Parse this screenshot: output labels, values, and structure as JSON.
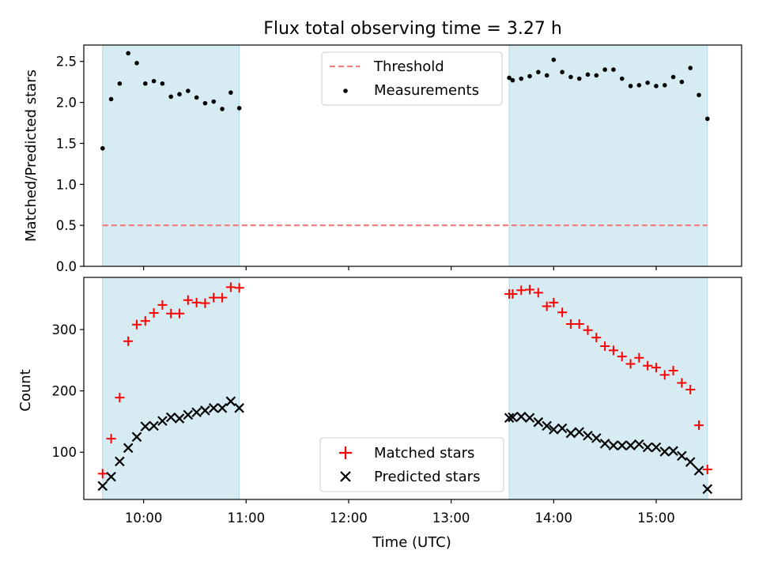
{
  "title": "Flux total observing time = 3.27 h",
  "colors": {
    "shade": "#add8e6",
    "threshold": "#f08080",
    "measurements": "#000000",
    "matched": "#ff0000",
    "predicted": "#000000"
  },
  "chart_data": [
    {
      "type": "scatter",
      "panel": "top",
      "xlabel": "",
      "ylabel": "Matched/Predicted stars",
      "xlim": [
        "09:25",
        "15:50"
      ],
      "ylim": [
        0,
        2.7
      ],
      "yticks": [
        0.0,
        0.5,
        1.0,
        1.5,
        2.0,
        2.5
      ],
      "ytick_labels": [
        "0.0",
        "0.5",
        "1.0",
        "1.5",
        "2.0",
        "2.5"
      ],
      "xticks": [
        "10:00",
        "11:00",
        "12:00",
        "13:00",
        "14:00",
        "15:00"
      ],
      "xtick_labels_visible": false,
      "shaded_intervals": [
        [
          "09:36",
          "10:56"
        ],
        [
          "13:34",
          "15:30"
        ]
      ],
      "legend": {
        "position": "upper center",
        "entries": [
          "Threshold",
          "Measurements"
        ]
      },
      "threshold": {
        "name": "Threshold",
        "y": 0.5,
        "style": "dashed",
        "x_range": [
          "09:36",
          "15:30"
        ]
      },
      "series": [
        {
          "name": "Measurements",
          "marker": "dot",
          "x": [
            "09:36",
            "09:41",
            "09:46",
            "09:51",
            "09:56",
            "10:01",
            "10:06",
            "10:11",
            "10:16",
            "10:21",
            "10:26",
            "10:31",
            "10:36",
            "10:41",
            "10:46",
            "10:51",
            "10:56",
            "13:34",
            "13:36",
            "13:41",
            "13:46",
            "13:51",
            "13:56",
            "14:00",
            "14:05",
            "14:10",
            "14:15",
            "14:20",
            "14:25",
            "14:30",
            "14:35",
            "14:40",
            "14:45",
            "14:50",
            "14:55",
            "15:00",
            "15:05",
            "15:10",
            "15:15",
            "15:20",
            "15:25",
            "15:30"
          ],
          "y": [
            1.44,
            2.04,
            2.23,
            2.6,
            2.48,
            2.23,
            2.26,
            2.23,
            2.07,
            2.1,
            2.14,
            2.06,
            1.99,
            2.01,
            1.92,
            2.12,
            1.93,
            2.3,
            2.27,
            2.29,
            2.32,
            2.37,
            2.33,
            2.52,
            2.37,
            2.31,
            2.29,
            2.34,
            2.33,
            2.4,
            2.4,
            2.29,
            2.2,
            2.21,
            2.24,
            2.2,
            2.21,
            2.31,
            2.25,
            2.42,
            2.09,
            1.8
          ]
        }
      ]
    },
    {
      "type": "scatter",
      "panel": "bottom",
      "xlabel": "Time (UTC)",
      "ylabel": "Count",
      "xlim": [
        "09:25",
        "15:50"
      ],
      "ylim": [
        23,
        385
      ],
      "yticks": [
        100,
        200,
        300
      ],
      "ytick_labels": [
        "100",
        "200",
        "300"
      ],
      "xticks": [
        "10:00",
        "11:00",
        "12:00",
        "13:00",
        "14:00",
        "15:00"
      ],
      "xtick_labels": [
        "10:00",
        "11:00",
        "12:00",
        "13:00",
        "14:00",
        "15:00"
      ],
      "shaded_intervals": [
        [
          "09:36",
          "10:56"
        ],
        [
          "13:34",
          "15:30"
        ]
      ],
      "legend": {
        "position": "lower center",
        "entries": [
          "Matched stars",
          "Predicted stars"
        ]
      },
      "series": [
        {
          "name": "Matched stars",
          "marker": "plus",
          "x": [
            "09:36",
            "09:41",
            "09:46",
            "09:51",
            "09:56",
            "10:01",
            "10:06",
            "10:11",
            "10:16",
            "10:21",
            "10:26",
            "10:31",
            "10:36",
            "10:41",
            "10:46",
            "10:51",
            "10:56",
            "13:34",
            "13:36",
            "13:41",
            "13:46",
            "13:51",
            "13:56",
            "14:00",
            "14:05",
            "14:10",
            "14:15",
            "14:20",
            "14:25",
            "14:30",
            "14:35",
            "14:40",
            "14:45",
            "14:50",
            "14:55",
            "15:00",
            "15:05",
            "15:10",
            "15:15",
            "15:20",
            "15:25",
            "15:30"
          ],
          "y": [
            65,
            122,
            189,
            281,
            308,
            314,
            327,
            340,
            326,
            326,
            348,
            344,
            343,
            352,
            352,
            369,
            368,
            358,
            358,
            364,
            365,
            360,
            338,
            344,
            328,
            309,
            309,
            299,
            287,
            273,
            266,
            256,
            244,
            254,
            241,
            238,
            226,
            233,
            213,
            202,
            144,
            72
          ]
        },
        {
          "name": "Predicted stars",
          "marker": "x",
          "x": [
            "09:36",
            "09:41",
            "09:46",
            "09:51",
            "09:56",
            "10:01",
            "10:06",
            "10:11",
            "10:16",
            "10:21",
            "10:26",
            "10:31",
            "10:36",
            "10:41",
            "10:46",
            "10:51",
            "10:56",
            "13:34",
            "13:36",
            "13:41",
            "13:46",
            "13:51",
            "13:56",
            "14:00",
            "14:05",
            "14:10",
            "14:15",
            "14:20",
            "14:25",
            "14:30",
            "14:35",
            "14:40",
            "14:45",
            "14:50",
            "14:55",
            "15:00",
            "15:05",
            "15:10",
            "15:15",
            "15:20",
            "15:25",
            "15:30"
          ],
          "y": [
            45,
            60,
            85,
            107,
            125,
            142,
            143,
            151,
            157,
            155,
            161,
            165,
            168,
            172,
            172,
            183,
            172,
            156,
            157,
            158,
            156,
            149,
            143,
            137,
            139,
            131,
            133,
            127,
            123,
            114,
            111,
            111,
            111,
            113,
            108,
            108,
            101,
            102,
            94,
            84,
            70,
            40
          ]
        }
      ]
    }
  ]
}
